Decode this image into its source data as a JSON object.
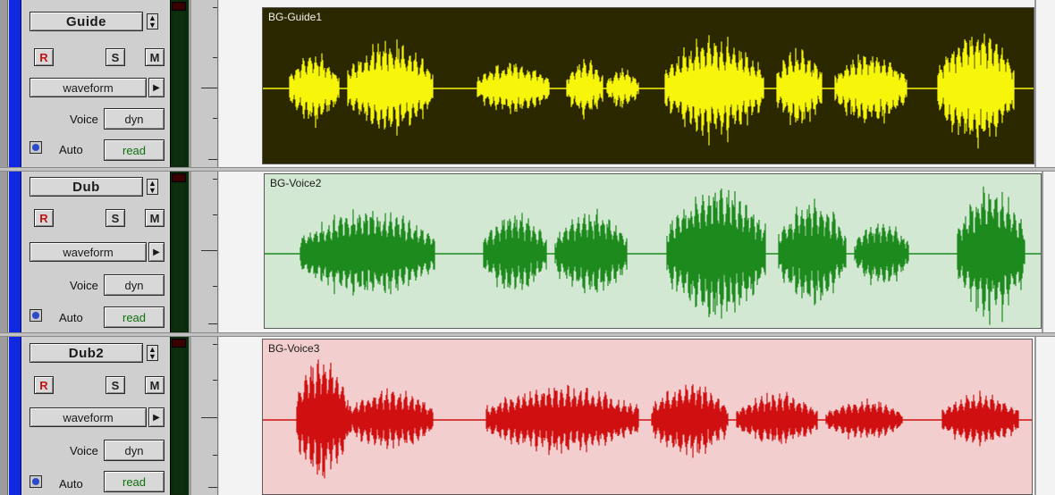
{
  "tracks": [
    {
      "name": "Guide",
      "rec_label": "R",
      "solo_label": "S",
      "mute_label": "M",
      "view_label": "waveform",
      "voice_label": "Voice",
      "voice_value": "dyn",
      "auto_label": "Auto",
      "auto_value": "read",
      "region_name": "BG-Guide1",
      "region_bg": "#2b2800",
      "waveform_color": "#f6f50a",
      "name_color": "#f2f2f2"
    },
    {
      "name": "Dub",
      "rec_label": "R",
      "solo_label": "S",
      "mute_label": "M",
      "view_label": "waveform",
      "voice_label": "Voice",
      "voice_value": "dyn",
      "auto_label": "Auto",
      "auto_value": "read",
      "region_name": "BG-Voice2",
      "region_bg": "#d2e8d2",
      "waveform_color": "#1c8a1c",
      "name_color": "#1a1a1a"
    },
    {
      "name": "Dub2",
      "rec_label": "R",
      "solo_label": "S",
      "mute_label": "M",
      "view_label": "waveform",
      "voice_label": "Voice",
      "voice_value": "dyn",
      "auto_label": "Auto",
      "auto_value": "read",
      "region_name": "BG-Voice3",
      "region_bg": "#f3cece",
      "waveform_color": "#d01010",
      "name_color": "#1a1a1a"
    }
  ],
  "icons": {
    "updown": "up-down-arrows-icon",
    "menu_arrow": "right-triangle-icon",
    "auto_dot": "auto-enable-dot-icon"
  },
  "colors": {
    "track_color_strip": "#0f28e0"
  }
}
